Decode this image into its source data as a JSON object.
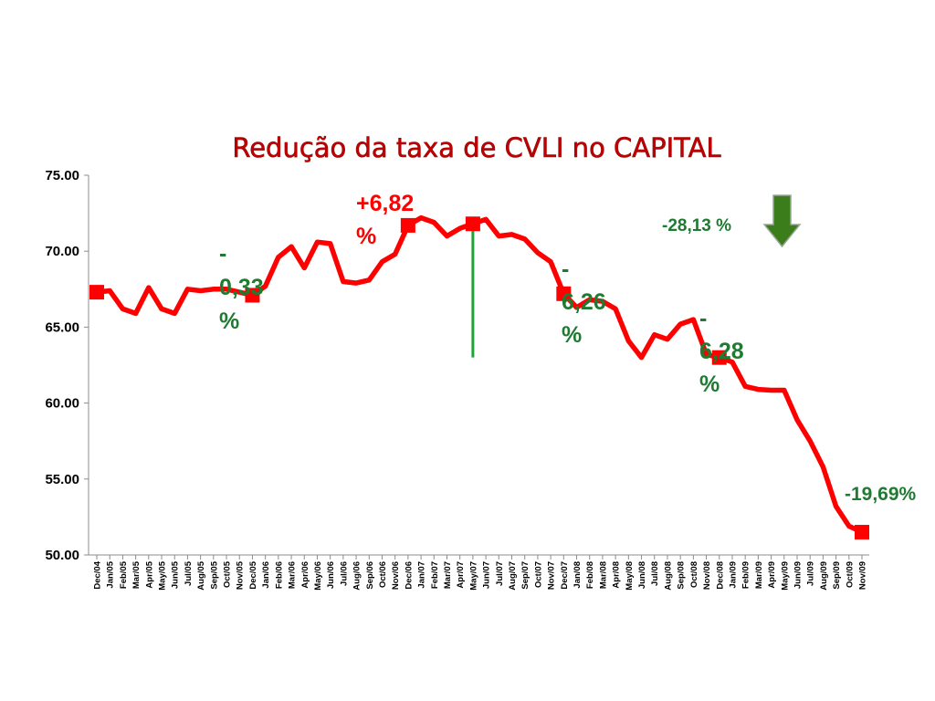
{
  "chart_data": {
    "type": "line",
    "title": "Redução da taxa de CVLI no CAPITAL",
    "xlabel": "",
    "ylabel": "",
    "ylim": [
      50,
      75
    ],
    "yticks": [
      "50.00",
      "55.00",
      "60.00",
      "65.00",
      "70.00",
      "75.00"
    ],
    "grid": false,
    "legend": "none",
    "colors": {
      "line": "#ff0000",
      "marker": "#ff0000",
      "title": "#c00000",
      "green_text": "#1f7a32",
      "red_text": "#ff0000",
      "vline": "#22a33a",
      "arrow": "#3a7d1a"
    },
    "categories": [
      "Dec/04",
      "Jan/05",
      "Feb/05",
      "Mar/05",
      "Apr/05",
      "May/05",
      "Jun/05",
      "Jul/05",
      "Aug/05",
      "Sep/05",
      "Oct/05",
      "Nov/05",
      "Dec/05",
      "Jan/06",
      "Feb/06",
      "Mar/06",
      "Apr/06",
      "May/06",
      "Jun/06",
      "Jul/06",
      "Aug/06",
      "Sep/06",
      "Oct/06",
      "Nov/06",
      "Dec/06",
      "Jan/07",
      "Feb/07",
      "Mar/07",
      "Apr/07",
      "May/07",
      "Jun/07",
      "Jul/07",
      "Aug/07",
      "Sep/07",
      "Oct/07",
      "Nov/07",
      "Dec/07",
      "Jan/08",
      "Feb/08",
      "Mar/08",
      "Apr/08",
      "May/08",
      "Jun/08",
      "Jul/08",
      "Aug/08",
      "Sep/08",
      "Oct/08",
      "Nov/08",
      "Dec/08",
      "Jan/09",
      "Feb/09",
      "Mar/09",
      "Apr/09",
      "May/09",
      "Jun/09",
      "Jul/09",
      "Aug/09",
      "Sep/09",
      "Oct/09",
      "Nov/09"
    ],
    "values": [
      67.3,
      67.4,
      66.2,
      65.9,
      67.6,
      66.2,
      65.9,
      67.5,
      67.4,
      67.5,
      67.5,
      67.3,
      67.1,
      67.7,
      69.6,
      70.3,
      68.9,
      70.6,
      70.5,
      68.0,
      67.9,
      68.1,
      69.3,
      69.8,
      71.7,
      72.2,
      71.9,
      71.0,
      71.5,
      71.8,
      72.1,
      71.0,
      71.1,
      70.8,
      69.9,
      69.3,
      67.2,
      66.3,
      66.8,
      66.7,
      66.2,
      64.1,
      63.0,
      64.5,
      64.2,
      65.2,
      65.5,
      63.2,
      63.0,
      62.7,
      61.1,
      60.9,
      60.85,
      60.85,
      58.9,
      57.5,
      55.8,
      53.2,
      51.9,
      51.5
    ],
    "markers": [
      0,
      12,
      24,
      29,
      36,
      48,
      59
    ],
    "vertical_marker": {
      "x": "May/07",
      "from": 63,
      "to": 71.6
    },
    "annotations": [
      {
        "lines": [
          "-",
          "0,33",
          "%"
        ],
        "color": "green"
      },
      {
        "lines": [
          "+6,82",
          "%"
        ],
        "color": "red"
      },
      {
        "lines": [
          "-",
          "6,26",
          "%"
        ],
        "color": "green"
      },
      {
        "lines": [
          "-",
          "6,28",
          "%"
        ],
        "color": "green"
      },
      {
        "lines": [
          "-28,13 %"
        ],
        "color": "green"
      },
      {
        "lines": [
          "-19,69%"
        ],
        "color": "green"
      }
    ]
  }
}
